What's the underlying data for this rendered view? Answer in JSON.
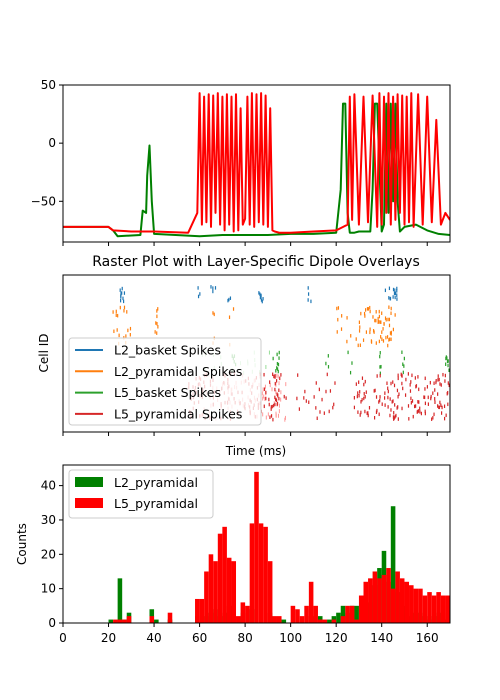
{
  "chart_data": [
    {
      "type": "line",
      "title": "",
      "xlabel": "",
      "ylabel": "",
      "xlim": [
        0,
        170
      ],
      "ylim": [
        -85,
        50
      ],
      "y_ticks": [
        50,
        0,
        -50
      ],
      "y_tick_labels": [
        "50",
        "0",
        "−50"
      ],
      "x_tick_values": [
        0,
        20,
        40,
        60,
        80,
        100,
        120,
        140,
        160
      ],
      "x_tick_labels_shown": false,
      "series": [
        {
          "color": "#008000",
          "x": [
            0,
            20,
            22,
            24,
            34,
            35,
            36.5,
            37,
            38,
            39,
            40,
            60,
            70,
            80,
            90,
            100,
            110,
            120,
            122,
            123,
            124,
            125,
            126,
            128,
            130,
            135,
            136,
            137,
            138,
            140,
            141,
            142,
            143,
            144,
            145,
            146,
            147,
            148,
            150,
            155,
            160,
            165,
            170
          ],
          "y": [
            -72,
            -72,
            -75,
            -80,
            -79,
            -58,
            -60,
            -28,
            -2,
            -50,
            -78,
            -80,
            -79,
            -79,
            -79,
            -78,
            -78,
            -77,
            -40,
            34,
            34,
            -60,
            -77,
            -77,
            -76,
            -76,
            -40,
            34,
            34,
            -76,
            -70,
            34,
            -60,
            34,
            -50,
            34,
            -50,
            -76,
            -72,
            -70,
            -75,
            -78,
            -79
          ]
        },
        {
          "color": "#ff0000",
          "x": [
            0,
            20,
            22,
            30,
            40,
            55,
            59,
            60,
            61,
            62,
            63,
            64,
            65,
            66,
            67,
            68,
            69,
            70,
            71,
            72,
            73,
            74,
            75,
            76,
            77,
            78,
            79,
            80,
            81,
            82,
            83,
            84,
            85,
            86,
            87,
            88,
            89,
            90,
            91,
            92,
            93,
            95,
            100,
            110,
            120,
            125,
            126,
            127,
            128,
            130,
            132,
            134,
            136,
            138,
            139,
            140,
            141,
            142,
            143,
            144,
            145,
            146,
            147,
            148,
            149,
            150,
            151,
            152,
            153,
            154,
            156,
            158,
            160,
            162,
            164,
            166,
            168,
            170
          ],
          "y": [
            -72,
            -72,
            -75,
            -76,
            -76,
            -77,
            -60,
            43,
            -70,
            40,
            -68,
            42,
            -72,
            41,
            -60,
            43,
            -70,
            40,
            -75,
            42,
            -70,
            40,
            -76,
            42,
            -75,
            30,
            -70,
            -65,
            40,
            -70,
            43,
            -72,
            42,
            -68,
            43,
            -70,
            41,
            -72,
            30,
            -75,
            -76,
            -77,
            -77,
            -76,
            -75,
            -70,
            40,
            -66,
            42,
            -70,
            40,
            -68,
            41,
            -72,
            43,
            -70,
            40,
            -60,
            43,
            -70,
            40,
            -66,
            42,
            -60,
            41,
            -70,
            40,
            -68,
            43,
            -72,
            42,
            -70,
            40,
            -68,
            20,
            -70,
            -60,
            -66
          ]
        }
      ]
    },
    {
      "type": "scatter",
      "title": "Raster Plot with Layer-Specific Dipole Overlays",
      "xlabel": "Time (ms)",
      "ylabel": "Cell ID",
      "xlim": [
        0,
        170
      ],
      "x_tick_labels_shown": false,
      "y_ticks_shown": false,
      "legend_position": "left",
      "series": [
        {
          "name": "L2_basket Spikes",
          "color": "#1f77b4",
          "band": 0,
          "spike_groups": [
            {
              "x": [
                25,
                27
              ],
              "count": 10
            },
            {
              "x": [
                59,
                61
              ],
              "count": 3
            },
            {
              "x": [
                65,
                67
              ],
              "count": 4
            },
            {
              "x": [
                72,
                74
              ],
              "count": 3
            },
            {
              "x": [
                85,
                88
              ],
              "count": 8
            },
            {
              "x": [
                107,
                109
              ],
              "count": 4
            },
            {
              "x": [
                141,
                144
              ],
              "count": 5
            },
            {
              "x": [
                144,
                147
              ],
              "count": 10
            }
          ]
        },
        {
          "name": "L2_pyramidal Spikes",
          "color": "#ff7f0e",
          "band": 1,
          "spike_groups": [
            {
              "x": [
                22,
                30
              ],
              "count": 18
            },
            {
              "x": [
                38,
                42
              ],
              "count": 8
            },
            {
              "x": [
                63,
                67
              ],
              "count": 4
            },
            {
              "x": [
                73,
                75
              ],
              "count": 3
            },
            {
              "x": [
                120,
                125
              ],
              "count": 8
            },
            {
              "x": [
                126,
                132
              ],
              "count": 8
            },
            {
              "x": [
                132,
                146
              ],
              "count": 55
            }
          ]
        },
        {
          "name": "L5_basket Spikes",
          "color": "#2ca02c",
          "band": 2,
          "spike_groups": [
            {
              "x": [
                74,
                77
              ],
              "count": 6
            },
            {
              "x": [
                92,
                95
              ],
              "count": 10
            },
            {
              "x": [
                115,
                117
              ],
              "count": 3
            },
            {
              "x": [
                124,
                128
              ],
              "count": 3
            },
            {
              "x": [
                138,
                140
              ],
              "count": 5
            },
            {
              "x": [
                148,
                150
              ],
              "count": 5
            },
            {
              "x": [
                168,
                170
              ],
              "count": 8
            }
          ]
        },
        {
          "name": "L5_pyramidal Spikes",
          "color": "#d62728",
          "band": 3,
          "spike_groups": [
            {
              "x": [
                55,
                95
              ],
              "count": 120
            },
            {
              "x": [
                93,
                120
              ],
              "count": 35
            },
            {
              "x": [
                128,
                170
              ],
              "count": 150
            }
          ]
        }
      ],
      "overlays": [
        {
          "color": "#ff9999",
          "x": [
            60,
            98
          ],
          "band": 3,
          "count": 90
        },
        {
          "color": "#99dd99",
          "x": [
            60,
            92
          ],
          "band": 2,
          "count": 20
        }
      ]
    },
    {
      "type": "bar",
      "title": "",
      "xlabel": "",
      "ylabel": "Counts",
      "xlim": [
        0,
        170
      ],
      "ylim": [
        0,
        46
      ],
      "x_ticks": [
        0,
        20,
        40,
        60,
        80,
        100,
        120,
        140,
        160
      ],
      "y_ticks": [
        0,
        10,
        20,
        30,
        40
      ],
      "bin_width": 2,
      "legend_position": "top-left",
      "series": [
        {
          "name": "L2_pyramidal",
          "color": "#008000",
          "bins": [
            [
              20,
              1
            ],
            [
              22,
              0
            ],
            [
              24,
              13
            ],
            [
              26,
              1
            ],
            [
              28,
              3
            ],
            [
              30,
              0
            ],
            [
              38,
              4
            ],
            [
              40,
              1
            ],
            [
              46,
              1
            ],
            [
              58,
              2
            ],
            [
              62,
              2
            ],
            [
              64,
              3
            ],
            [
              66,
              4
            ],
            [
              68,
              2
            ],
            [
              70,
              3
            ],
            [
              72,
              5
            ],
            [
              78,
              3
            ],
            [
              82,
              4
            ],
            [
              90,
              3
            ],
            [
              96,
              1
            ],
            [
              108,
              2
            ],
            [
              112,
              2
            ],
            [
              116,
              1
            ],
            [
              118,
              2
            ],
            [
              120,
              3
            ],
            [
              122,
              5
            ],
            [
              124,
              3
            ],
            [
              126,
              5
            ],
            [
              128,
              5
            ],
            [
              132,
              2
            ],
            [
              134,
              6
            ],
            [
              136,
              11
            ],
            [
              138,
              16
            ],
            [
              140,
              21
            ],
            [
              142,
              12
            ],
            [
              144,
              34
            ],
            [
              146,
              9
            ],
            [
              148,
              5
            ],
            [
              150,
              4
            ],
            [
              152,
              2
            ],
            [
              154,
              3
            ],
            [
              156,
              3
            ],
            [
              158,
              2
            ],
            [
              160,
              1
            ],
            [
              162,
              2
            ],
            [
              164,
              3
            ],
            [
              166,
              1
            ],
            [
              168,
              3
            ]
          ]
        },
        {
          "name": "L5_pyramidal",
          "color": "#ff0000",
          "bins": [
            [
              22,
              1
            ],
            [
              24,
              1
            ],
            [
              26,
              1
            ],
            [
              28,
              2
            ],
            [
              38,
              2
            ],
            [
              46,
              3
            ],
            [
              58,
              7
            ],
            [
              60,
              7
            ],
            [
              62,
              15
            ],
            [
              64,
              20
            ],
            [
              66,
              18
            ],
            [
              68,
              26
            ],
            [
              70,
              28
            ],
            [
              72,
              19
            ],
            [
              74,
              18
            ],
            [
              76,
              2
            ],
            [
              78,
              6
            ],
            [
              80,
              5
            ],
            [
              82,
              29
            ],
            [
              84,
              44
            ],
            [
              86,
              29
            ],
            [
              88,
              28
            ],
            [
              90,
              18
            ],
            [
              92,
              2
            ],
            [
              94,
              2
            ],
            [
              100,
              5
            ],
            [
              102,
              4
            ],
            [
              104,
              2
            ],
            [
              106,
              5
            ],
            [
              108,
              12
            ],
            [
              110,
              5
            ],
            [
              112,
              1
            ],
            [
              114,
              1
            ],
            [
              118,
              1
            ],
            [
              122,
              2
            ],
            [
              124,
              5
            ],
            [
              126,
              5
            ],
            [
              128,
              1
            ],
            [
              130,
              8
            ],
            [
              132,
              12
            ],
            [
              134,
              13
            ],
            [
              136,
              15
            ],
            [
              138,
              13
            ],
            [
              140,
              14
            ],
            [
              142,
              16
            ],
            [
              144,
              10
            ],
            [
              146,
              15
            ],
            [
              148,
              13
            ],
            [
              150,
              12
            ],
            [
              152,
              11
            ],
            [
              154,
              10
            ],
            [
              156,
              10
            ],
            [
              158,
              8
            ],
            [
              160,
              9
            ],
            [
              162,
              8
            ],
            [
              164,
              9
            ],
            [
              166,
              8
            ],
            [
              168,
              8
            ]
          ]
        }
      ]
    }
  ]
}
